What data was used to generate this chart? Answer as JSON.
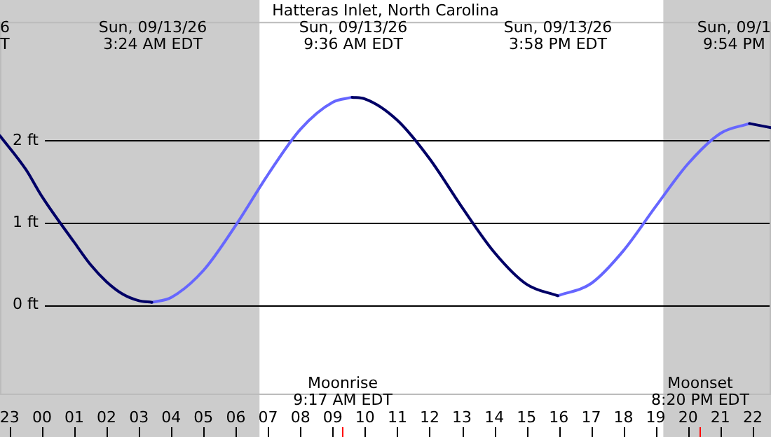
{
  "chart_data": {
    "type": "line",
    "title": "Hatteras Inlet, North Carolina",
    "x": [
      "--09-12T22:42",
      "--09-12T23:30",
      "--09-13T00:00",
      "--09-13T01:00",
      "--09-13T01:30",
      "--09-13T02:00",
      "--09-13T02:30",
      "--09-13T03:00",
      "--09-13T03:24",
      "--09-13T04:00",
      "--09-13T05:00",
      "--09-13T06:00",
      "--09-13T07:00",
      "--09-13T08:00",
      "--09-13T09:00",
      "--09-13T09:36",
      "--09-13T10:00",
      "--09-13T11:00",
      "--09-13T12:00",
      "--09-13T13:00",
      "--09-13T14:00",
      "--09-13T15:00",
      "--09-13T15:58",
      "--09-13T17:00",
      "--09-13T18:00",
      "--09-13T19:00",
      "--09-13T20:00",
      "--09-13T21:00",
      "--09-13T21:54",
      "--09-13T22:34"
    ],
    "series": [
      {
        "color": "#000066",
        "values": [
          2.06,
          1.65,
          1.32,
          0.76,
          0.49,
          0.28,
          0.13,
          0.05,
          0.03,
          null,
          null,
          null,
          null,
          null,
          null,
          2.53,
          2.51,
          2.25,
          1.78,
          1.19,
          0.64,
          0.25,
          0.11,
          null,
          null,
          null,
          null,
          null,
          2.21,
          2.16
        ]
      },
      {
        "color": "#6666ff",
        "values": [
          null,
          null,
          null,
          null,
          null,
          null,
          null,
          null,
          0.03,
          0.09,
          0.42,
          0.97,
          1.59,
          2.14,
          2.47,
          2.53,
          null,
          null,
          null,
          null,
          null,
          null,
          0.11,
          0.26,
          0.66,
          1.2,
          1.72,
          2.09,
          2.21,
          null
        ]
      }
    ],
    "xlim": [
      "--09-12T22:42",
      "--09-13T22:34"
    ],
    "xticks": [
      {
        "value": "--09-12T23:00",
        "label": "23"
      },
      {
        "value": "--09-13T00:00",
        "label": "00"
      },
      {
        "value": "--09-13T01:00",
        "label": "01"
      },
      {
        "value": "--09-13T02:00",
        "label": "02"
      },
      {
        "value": "--09-13T03:00",
        "label": "03"
      },
      {
        "value": "--09-13T04:00",
        "label": "04"
      },
      {
        "value": "--09-13T05:00",
        "label": "05"
      },
      {
        "value": "--09-13T06:00",
        "label": "06"
      },
      {
        "value": "--09-13T07:00",
        "label": "07"
      },
      {
        "value": "--09-13T08:00",
        "label": "08"
      },
      {
        "value": "--09-13T09:00",
        "label": "09"
      },
      {
        "value": "--09-13T10:00",
        "label": "10"
      },
      {
        "value": "--09-13T11:00",
        "label": "11"
      },
      {
        "value": "--09-13T12:00",
        "label": "12"
      },
      {
        "value": "--09-13T13:00",
        "label": "13"
      },
      {
        "value": "--09-13T14:00",
        "label": "14"
      },
      {
        "value": "--09-13T15:00",
        "label": "15"
      },
      {
        "value": "--09-13T16:00",
        "label": "16"
      },
      {
        "value": "--09-13T17:00",
        "label": "17"
      },
      {
        "value": "--09-13T18:00",
        "label": "18"
      },
      {
        "value": "--09-13T19:00",
        "label": "19"
      },
      {
        "value": "--09-13T20:00",
        "label": "20"
      },
      {
        "value": "--09-13T21:00",
        "label": "21"
      },
      {
        "value": "--09-13T22:00",
        "label": "22"
      }
    ],
    "ylim": [
      -1.1,
      3.45
    ],
    "yticks": [
      {
        "value": 0,
        "label": "0 ft"
      },
      {
        "value": 1,
        "label": "1 ft"
      },
      {
        "value": 2,
        "label": "2 ft"
      }
    ],
    "grid": "y",
    "marker": "none",
    "line_style": "solid",
    "bands": [
      {
        "axis": "x",
        "from": "--09-12T22:42",
        "to": "--09-13T06:44",
        "color": "#cccccc"
      },
      {
        "axis": "x",
        "from": "--09-13T19:14",
        "to": "--09-13T22:34",
        "color": "#cccccc"
      }
    ],
    "ref_lines": [
      {
        "axis": "x",
        "value": "--09-13T09:17",
        "label": "Moonrise\n9:17 AM EDT",
        "color": "#ff0000"
      },
      {
        "axis": "x",
        "value": "--09-13T20:20",
        "label": "Moonset\n8:20 PM EDT",
        "color": "#ff0000"
      }
    ],
    "annotations": [
      "6\nT",
      "Sun, 09/13/26\n3:24 AM EDT",
      "Sun, 09/13/26\n9:36 AM EDT",
      "Sun, 09/13/26\n3:58 PM EDT",
      "Sun, 09/1\n9:54 PM"
    ]
  }
}
